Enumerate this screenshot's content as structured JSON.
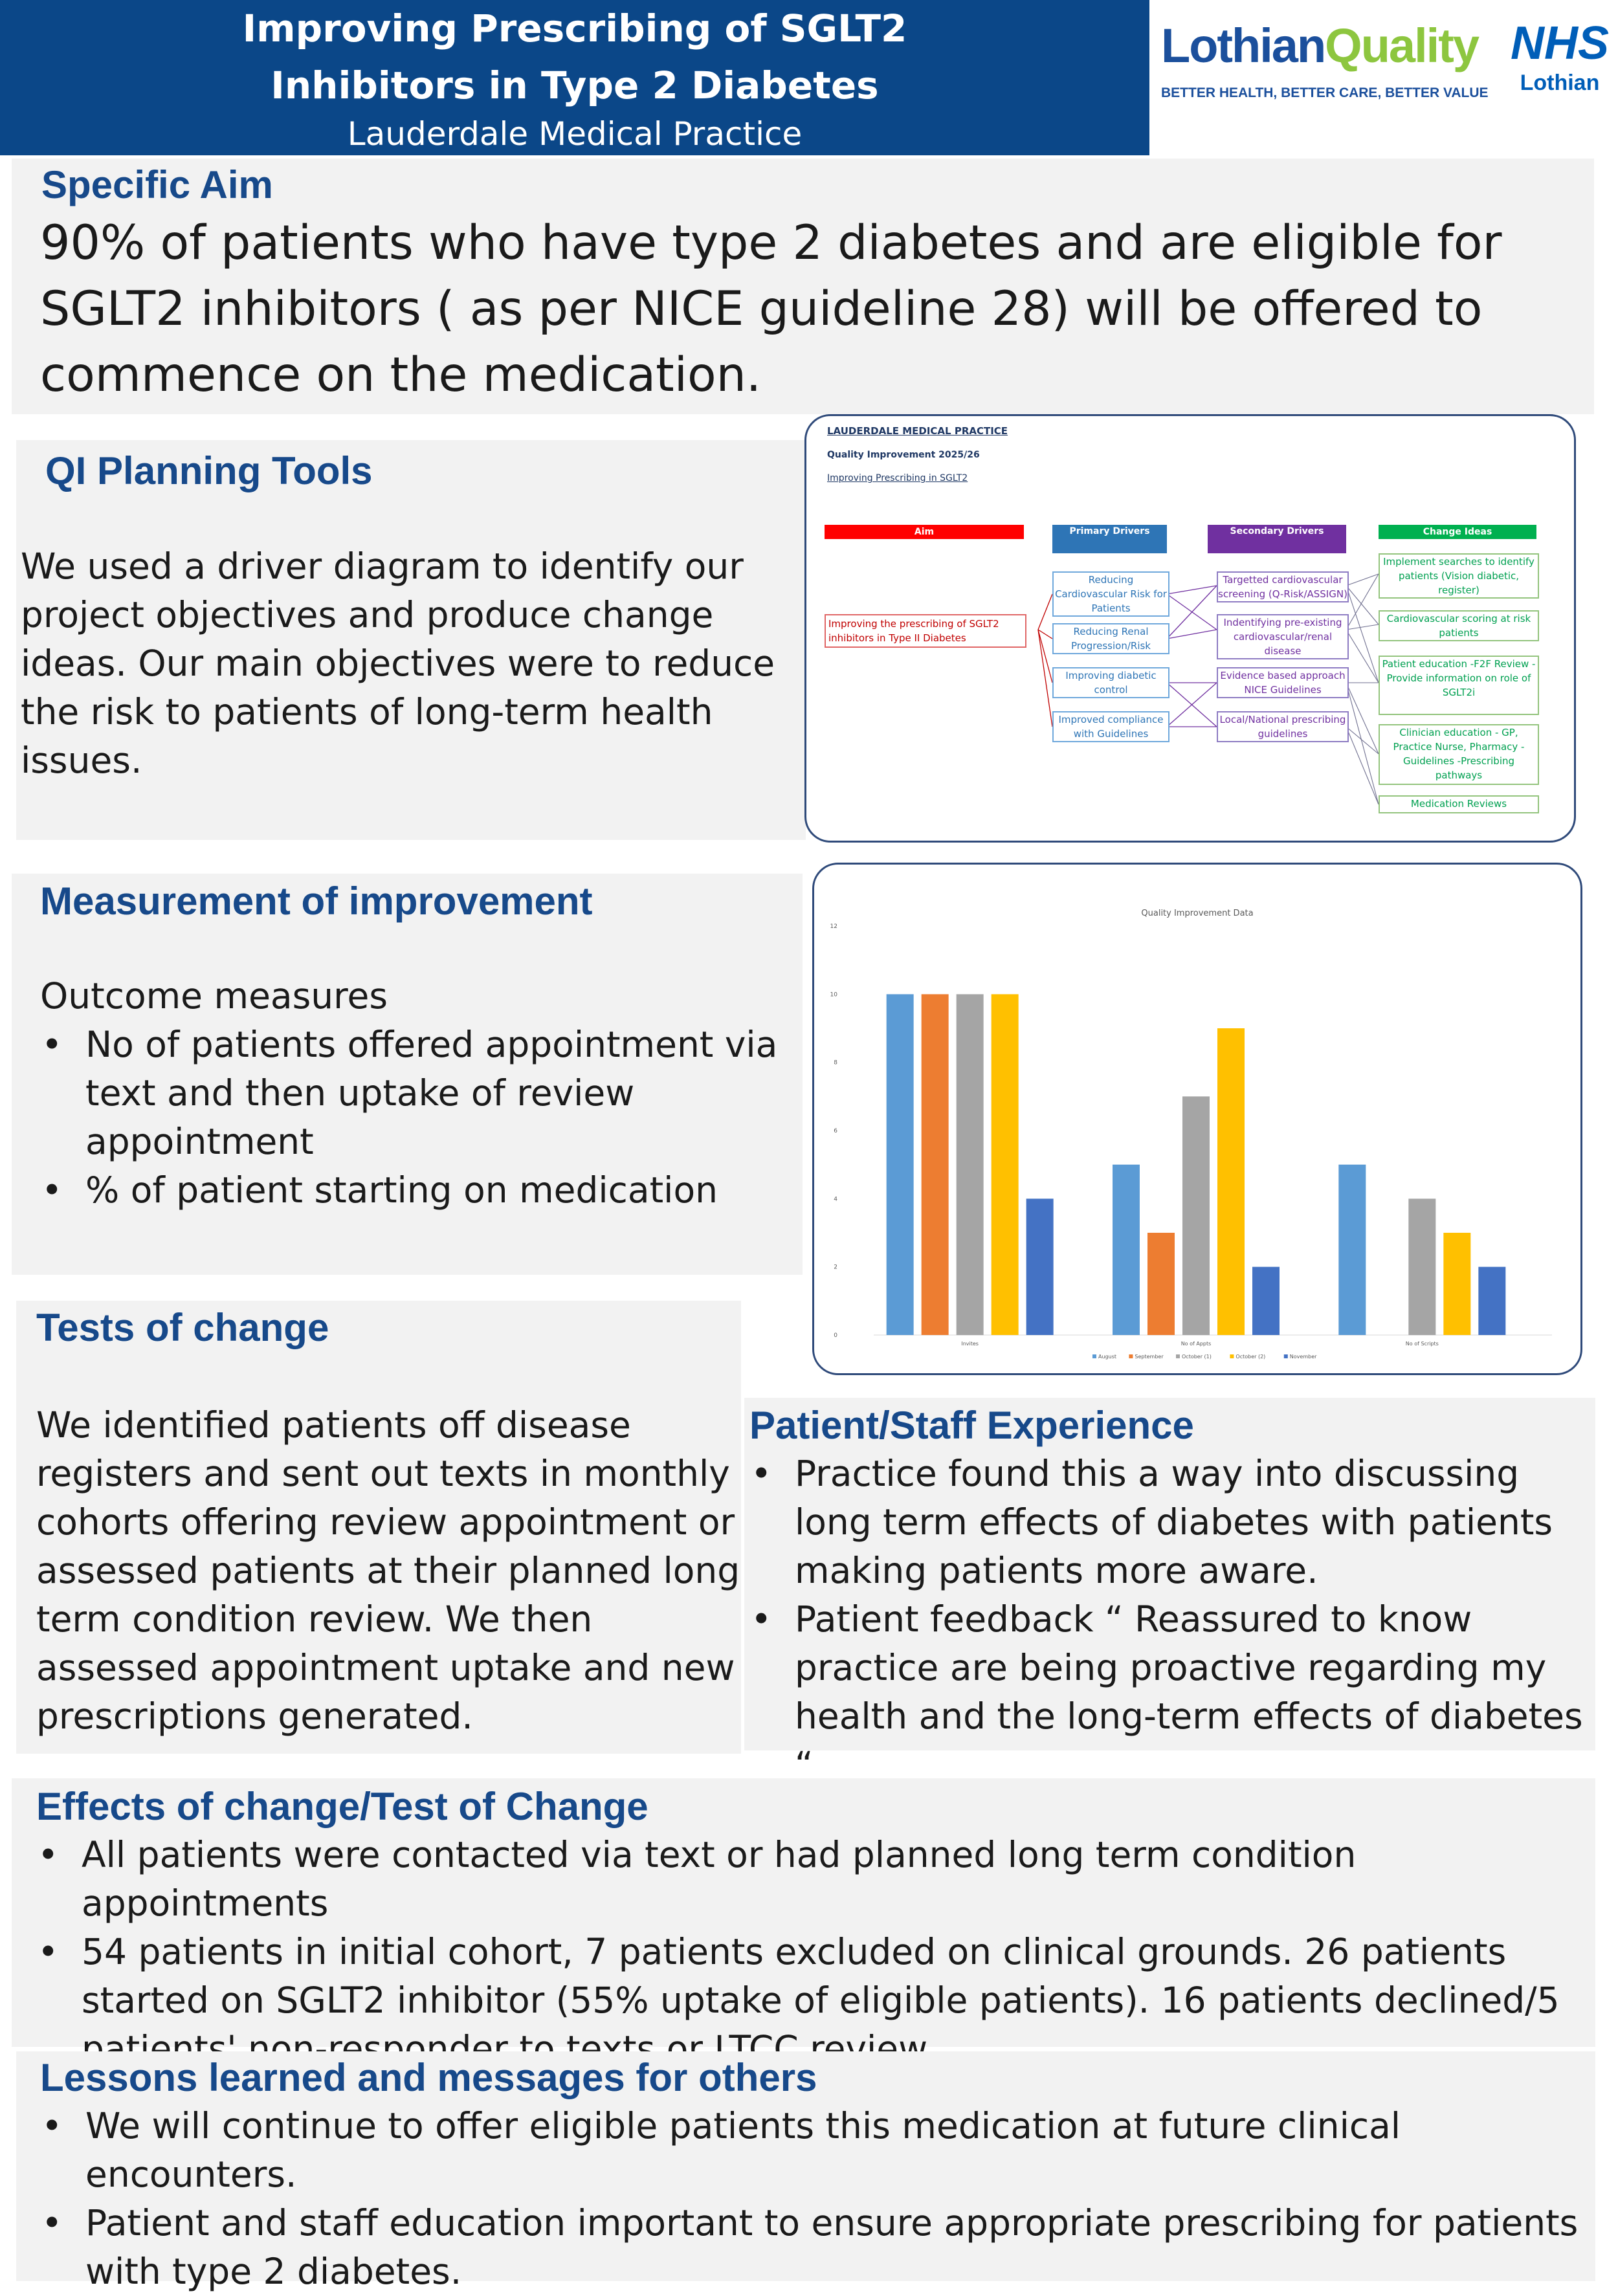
{
  "header": {
    "title_line1": "Improving Prescribing of SGLT2",
    "title_line2": "Inhibitors in Type 2 Diabetes",
    "subtitle": "Lauderdale Medical Practice",
    "brand_name_part1": "Lothian",
    "brand_name_part2": "Quality",
    "brand_tagline": "BETTER HEALTH, BETTER CARE, BETTER VALUE",
    "nhs_logo": "NHS",
    "nhs_region": "Lothian"
  },
  "colors": {
    "header_blue": "#0b4788",
    "heading_blue": "#17498a",
    "panel_grey": "#f2f2f2",
    "brand_blue": "#1b4f9c",
    "brand_green": "#8dc63f",
    "nhs_blue": "#005eb8"
  },
  "specific_aim": {
    "heading": "Specific Aim",
    "text": "90% of patients who have type 2 diabetes and are eligible for SGLT2 inhibitors ( as per NICE guideline 28) will be offered to commence on the medication."
  },
  "qi_tools": {
    "heading": "QI Planning Tools",
    "text": "We used a driver diagram to identify our project objectives and produce change ideas. Our main objectives were to reduce the risk to patients of long-term health issues."
  },
  "driver_diagram": {
    "practice": "LAUDERDALE MEDICAL PRACTICE",
    "project": "Quality Improvement 2025/26",
    "link": "Improving Prescribing in SGLT2",
    "col_aim": "Aim",
    "col_primary": "Primary Drivers",
    "col_secondary": "Secondary Drivers",
    "col_change": "Change Ideas",
    "aim_text": "Improving the prescribing of SGLT2 inhibitors in Type II Diabetes",
    "primary": [
      "Reducing Cardiovascular Risk for Patients",
      "Reducing Renal Progression/Risk",
      "Improving diabetic control",
      "Improved compliance with Guidelines"
    ],
    "secondary": [
      "Targetted cardiovascular screening (Q-Risk/ASSIGN)",
      "Indentifying pre-existing cardiovascular/renal disease",
      "Evidence based approach NICE Guidelines",
      "Local/National prescribing guidelines"
    ],
    "change": [
      "Implement searches to identify patients (Vision diabetic, register)",
      "Cardiovascular scoring at risk patients",
      "Patient education -F2F Review - Provide information on role of SGLT2i",
      "Clinician education - GP, Practice Nurse, Pharmacy - Guidelines -Prescribing pathways",
      "Medication Reviews"
    ]
  },
  "measurement": {
    "heading": "Measurement of improvement",
    "subheading": "Outcome measures",
    "bullets": [
      "No of patients offered appointment via text and then uptake of review appointment",
      "% of patient starting on medication"
    ]
  },
  "chart_data": {
    "type": "bar",
    "title": "Quality Improvement Data",
    "categories": [
      "Invites",
      "No of Appts",
      "No of Scripts"
    ],
    "series": [
      {
        "name": "August",
        "values": [
          10,
          5,
          5
        ],
        "color": "#5b9bd5"
      },
      {
        "name": "September",
        "values": [
          10,
          3,
          0
        ],
        "color": "#ed7d31"
      },
      {
        "name": "October (1)",
        "values": [
          10,
          7,
          4
        ],
        "color": "#a5a5a5"
      },
      {
        "name": "October (2)",
        "values": [
          10,
          9,
          3
        ],
        "color": "#ffc000"
      },
      {
        "name": "November",
        "values": [
          4,
          2,
          2
        ],
        "color": "#4472c4"
      }
    ],
    "y_ticks": [
      "0",
      "2",
      "4",
      "6",
      "8",
      "10",
      "12"
    ],
    "ylim": [
      0,
      12
    ],
    "grid": false,
    "legend": "bottom"
  },
  "tests_of_change": {
    "heading": "Tests of change",
    "text": "We identified patients off disease registers and sent out texts in monthly cohorts offering review appointment or assessed patients at their planned long term condition review. We then assessed appointment uptake and new prescriptions generated."
  },
  "experience": {
    "heading": "Patient/Staff Experience",
    "bullets": [
      "Practice found this a way into discussing long term effects of diabetes with patients making patients more aware.",
      "Patient feedback “ Reassured to know practice are being proactive regarding my health and the long-term effects of diabetes “"
    ]
  },
  "effects": {
    "heading": "Effects of change/Test of Change",
    "bullets": [
      "All patients were contacted via text or had planned long term condition appointments",
      "54 patients in initial cohort, 7 patients excluded on clinical grounds. 26 patients started on SGLT2 inhibitor (55% uptake of eligible patients). 16 patients declined/5 patients' non-responder to texts or LTCC review."
    ]
  },
  "lessons": {
    "heading": "Lessons learned and messages for others",
    "bullets": [
      "We will continue to offer eligible patients this medication at future clinical encounters.",
      "Patient and staff education important to ensure appropriate prescribing for patients with type 2 diabetes."
    ]
  }
}
